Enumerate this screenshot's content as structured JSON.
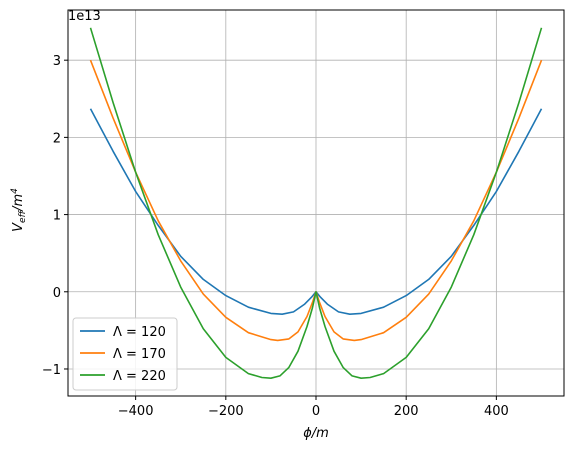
{
  "chart_data": {
    "type": "line",
    "xlabel": "ϕ/m",
    "ylabel": "V_eff/m^4",
    "ylabel_main": "V",
    "ylabel_sub": "eff",
    "ylabel_tail": "/m",
    "ylabel_sup": "4",
    "offset_text": "1e13",
    "xlim": [
      -550,
      550
    ],
    "ylim": [
      -1.35,
      3.65
    ],
    "y_scale_note": "values in units of 1e13",
    "xticks": [
      -400,
      -200,
      0,
      200,
      400
    ],
    "xtick_labels": [
      "−400",
      "−200",
      "0",
      "200",
      "400"
    ],
    "yticks": [
      -1,
      0,
      1,
      2,
      3
    ],
    "ytick_labels": [
      "−1",
      "0",
      "1",
      "2",
      "3"
    ],
    "grid": true,
    "legend_position": "lower-left",
    "series": [
      {
        "name": "Λ = 120",
        "color": "#1f77b4",
        "x": [
          -500,
          -450,
          -400,
          -350,
          -300,
          -250,
          -200,
          -150,
          -100,
          -75,
          -50,
          -25,
          -10,
          0,
          10,
          25,
          50,
          75,
          100,
          150,
          200,
          250,
          300,
          350,
          400,
          450,
          500
        ],
        "y": [
          2.37,
          1.82,
          1.3,
          0.86,
          0.46,
          0.16,
          -0.05,
          -0.2,
          -0.28,
          -0.29,
          -0.26,
          -0.16,
          -0.07,
          0.0,
          -0.07,
          -0.16,
          -0.26,
          -0.29,
          -0.28,
          -0.2,
          -0.05,
          0.16,
          0.46,
          0.86,
          1.3,
          1.82,
          2.37
        ]
      },
      {
        "name": "Λ = 170",
        "color": "#ff7f0e",
        "x": [
          -500,
          -450,
          -400,
          -350,
          -300,
          -250,
          -200,
          -150,
          -100,
          -85,
          -60,
          -40,
          -20,
          -8,
          0,
          8,
          20,
          40,
          60,
          85,
          100,
          150,
          200,
          250,
          300,
          350,
          400,
          450,
          500
        ],
        "y": [
          3.0,
          2.25,
          1.55,
          0.92,
          0.4,
          -0.03,
          -0.33,
          -0.53,
          -0.62,
          -0.63,
          -0.61,
          -0.52,
          -0.32,
          -0.14,
          0.0,
          -0.14,
          -0.32,
          -0.52,
          -0.61,
          -0.63,
          -0.62,
          -0.53,
          -0.33,
          -0.03,
          0.4,
          0.92,
          1.55,
          2.25,
          3.0
        ]
      },
      {
        "name": "Λ = 220",
        "color": "#2ca02c",
        "x": [
          -500,
          -450,
          -400,
          -350,
          -300,
          -250,
          -200,
          -150,
          -120,
          -100,
          -80,
          -60,
          -40,
          -20,
          -8,
          0,
          8,
          20,
          40,
          60,
          80,
          100,
          120,
          150,
          200,
          250,
          300,
          350,
          400,
          450,
          500
        ],
        "y": [
          3.42,
          2.45,
          1.55,
          0.74,
          0.06,
          -0.48,
          -0.85,
          -1.06,
          -1.11,
          -1.12,
          -1.09,
          -0.98,
          -0.77,
          -0.45,
          -0.21,
          0.0,
          -0.21,
          -0.45,
          -0.77,
          -0.98,
          -1.09,
          -1.12,
          -1.11,
          -1.06,
          -0.85,
          -0.48,
          0.06,
          0.74,
          1.55,
          2.45,
          3.42
        ]
      }
    ]
  }
}
